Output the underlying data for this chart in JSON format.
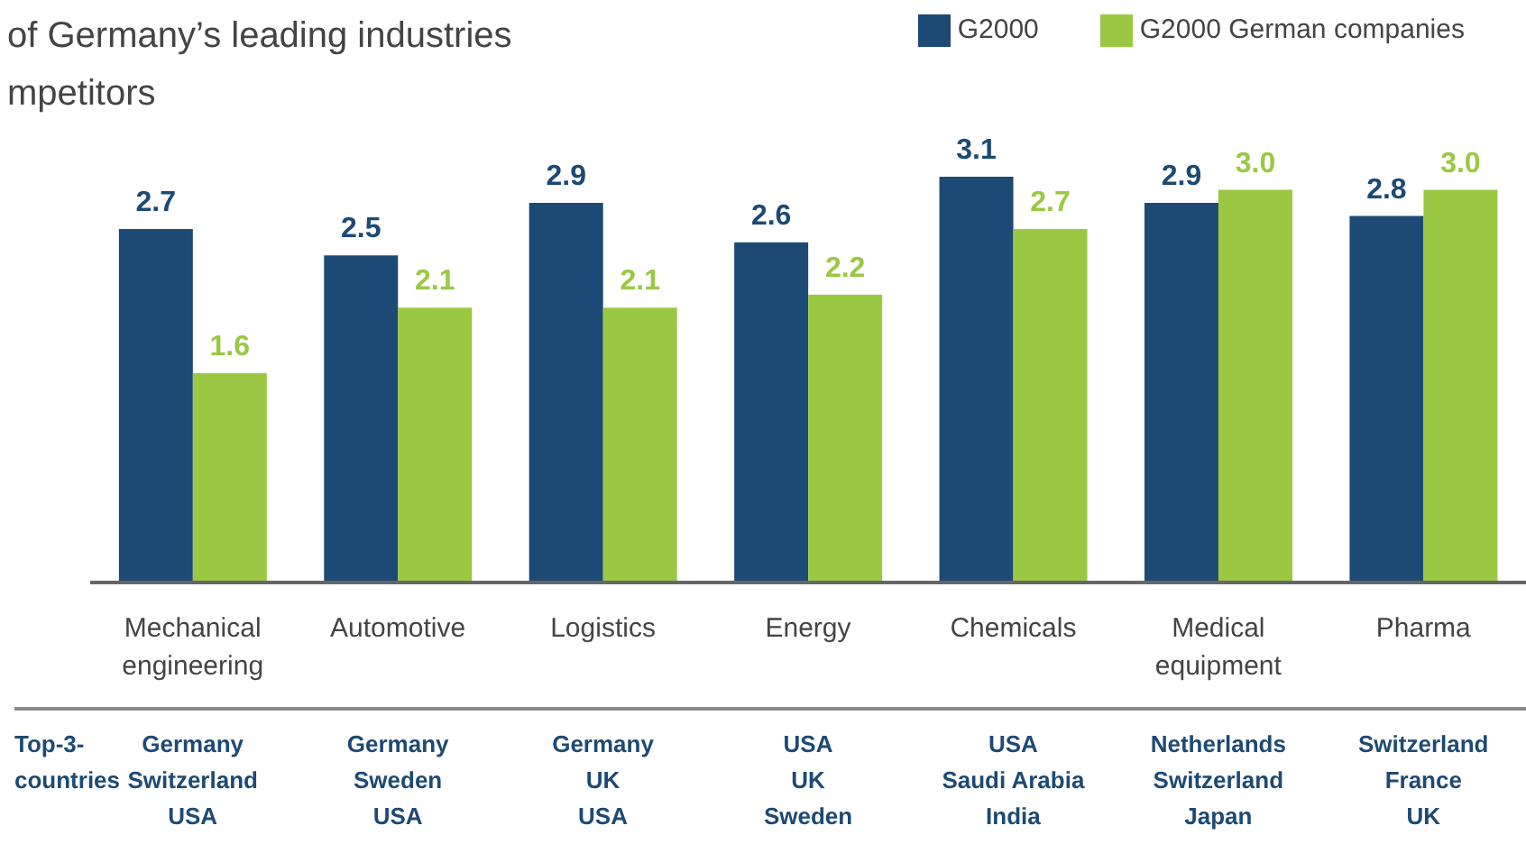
{
  "chart_data": {
    "type": "bar",
    "title": "of Germany’s leading industries\nmpetitors",
    "categories": [
      "Mechanical engineering",
      "Automotive",
      "Logistics",
      "Energy",
      "Chemicals",
      "Medical equipment",
      "Pharma"
    ],
    "series": [
      {
        "name": "G2000",
        "color": "#1d4a74",
        "values": [
          2.7,
          2.5,
          2.9,
          2.6,
          3.1,
          2.9,
          2.8
        ],
        "value_labels": [
          "2.7",
          "2.5",
          "2.9",
          "2.6",
          "3.1",
          "2.9",
          "2.8"
        ]
      },
      {
        "name": "G2000 German companies",
        "color": "#9bc843",
        "values": [
          1.6,
          2.1,
          2.1,
          2.2,
          2.7,
          3.0,
          3.0
        ],
        "value_labels": [
          "1.6",
          "2.1",
          "2.1",
          "2.2",
          "2.7",
          "3.0",
          "3.0"
        ]
      }
    ],
    "legend": "top right",
    "grid": false,
    "annotations": [
      "Top-3-countries",
      "Germany\nSwitzerland\nUSA",
      "Germany\nSweden\nUSA",
      "Germany\nUK\nUSA",
      "USA\nUK\nSweden",
      "USA\nSaudi Arabia\nIndia",
      "Netherlands\nSwitzerland\nJapan",
      "Switzerland\nFrance\nUK"
    ]
  }
}
